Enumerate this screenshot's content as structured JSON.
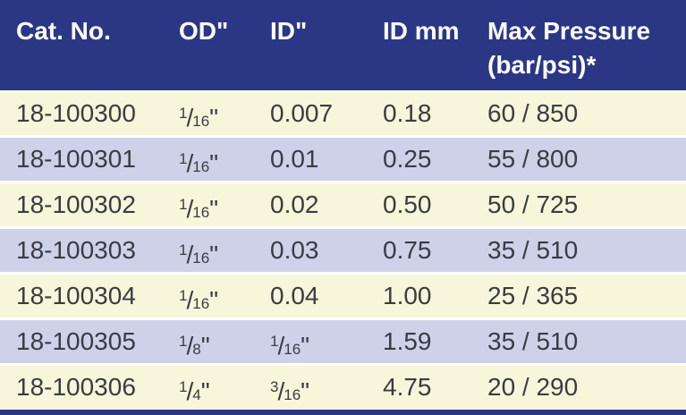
{
  "colors": {
    "header_bg": "#2b3784",
    "header_text": "#ffffff",
    "row_cream": "#f8f6da",
    "row_lavender": "#cdd2e9",
    "body_text": "#3b3b43",
    "bottom_bar": "#2b3784"
  },
  "table": {
    "headers": [
      {
        "label": "Cat. No."
      },
      {
        "label": "OD\""
      },
      {
        "label": "ID\""
      },
      {
        "label": "ID mm"
      },
      {
        "label": "Max Pressure",
        "label_line2": "(bar/psi)*"
      }
    ],
    "rows": [
      {
        "cat_no": "18-100300",
        "od_in": "1/16\"",
        "id_in": "0.007",
        "id_mm": "0.18",
        "max_pressure_bar_psi": "60 / 850"
      },
      {
        "cat_no": "18-100301",
        "od_in": "1/16\"",
        "id_in": "0.01",
        "id_mm": "0.25",
        "max_pressure_bar_psi": "55 / 800"
      },
      {
        "cat_no": "18-100302",
        "od_in": "1/16\"",
        "id_in": "0.02",
        "id_mm": "0.50",
        "max_pressure_bar_psi": "50 / 725"
      },
      {
        "cat_no": "18-100303",
        "od_in": "1/16\"",
        "id_in": "0.03",
        "id_mm": "0.75",
        "max_pressure_bar_psi": "35 / 510"
      },
      {
        "cat_no": "18-100304",
        "od_in": "1/16\"",
        "id_in": "0.04",
        "id_mm": "1.00",
        "max_pressure_bar_psi": "25 / 365"
      },
      {
        "cat_no": "18-100305",
        "od_in": "1/8\"",
        "id_in": "1/16\"",
        "id_mm": "1.59",
        "max_pressure_bar_psi": "35 / 510"
      },
      {
        "cat_no": "18-100306",
        "od_in": "1/4\"",
        "id_in": "3/16\"",
        "id_mm": "4.75",
        "max_pressure_bar_psi": "20 / 290"
      }
    ]
  }
}
